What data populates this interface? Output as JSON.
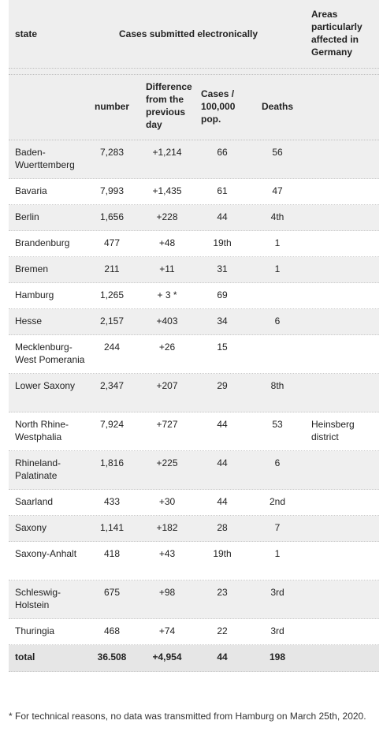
{
  "header": {
    "state": "state",
    "cases_group": "Cases submitted electronically",
    "areas": "Areas particularly affected in Germany",
    "number": "number",
    "difference": "Difference from the previous day",
    "cases_per": "Cases / 100,000 pop.",
    "deaths": "Deaths"
  },
  "rows": [
    {
      "state": "Baden-Wuerttemberg",
      "number": "7,283",
      "diff": "+1,214",
      "cases": "66",
      "deaths": "56",
      "areas": ""
    },
    {
      "state": "Bavaria",
      "number": "7,993",
      "diff": "+1,435",
      "cases": "61",
      "deaths": "47",
      "areas": ""
    },
    {
      "state": "Berlin",
      "number": "1,656",
      "diff": "+228",
      "cases": "44",
      "deaths": "4th",
      "areas": ""
    },
    {
      "state": "Brandenburg",
      "number": "477",
      "diff": "+48",
      "cases": "19th",
      "deaths": "1",
      "areas": ""
    },
    {
      "state": "Bremen",
      "number": "211",
      "diff": "+11",
      "cases": "31",
      "deaths": "1",
      "areas": ""
    },
    {
      "state": "Hamburg",
      "number": "1,265",
      "diff": "+ 3 *",
      "cases": "69",
      "deaths": "",
      "areas": ""
    },
    {
      "state": "Hesse",
      "number": "2,157",
      "diff": "+403",
      "cases": "34",
      "deaths": "6",
      "areas": ""
    },
    {
      "state": "Mecklenburg-West Pomerania",
      "number": "244",
      "diff": "+26",
      "cases": "15",
      "deaths": "",
      "areas": ""
    },
    {
      "state": "Lower Saxony",
      "number": "2,347",
      "diff": "+207",
      "cases": "29",
      "deaths": "8th",
      "areas": ""
    },
    {
      "state": "North Rhine-Westphalia",
      "number": "7,924",
      "diff": "+727",
      "cases": "44",
      "deaths": "53",
      "areas": "Heinsberg district"
    },
    {
      "state": "Rhineland-Palatinate",
      "number": "1,816",
      "diff": "+225",
      "cases": "44",
      "deaths": "6",
      "areas": ""
    },
    {
      "state": "Saarland",
      "number": "433",
      "diff": "+30",
      "cases": "44",
      "deaths": "2nd",
      "areas": ""
    },
    {
      "state": "Saxony",
      "number": "1,141",
      "diff": "+182",
      "cases": "28",
      "deaths": "7",
      "areas": ""
    },
    {
      "state": "Saxony-Anhalt",
      "number": "418",
      "diff": "+43",
      "cases": "19th",
      "deaths": "1",
      "areas": ""
    },
    {
      "state": "Schleswig-Holstein",
      "number": "675",
      "diff": "+98",
      "cases": "23",
      "deaths": "3rd",
      "areas": ""
    },
    {
      "state": "Thuringia",
      "number": "468",
      "diff": "+74",
      "cases": "22",
      "deaths": "3rd",
      "areas": ""
    }
  ],
  "total": {
    "state": "total",
    "number": "36.508",
    "diff": "+4,954",
    "cases": "44",
    "deaths": "198",
    "areas": ""
  },
  "footnote": "* For technical reasons, no data was transmitted from Hamburg on March 25th, 2020."
}
